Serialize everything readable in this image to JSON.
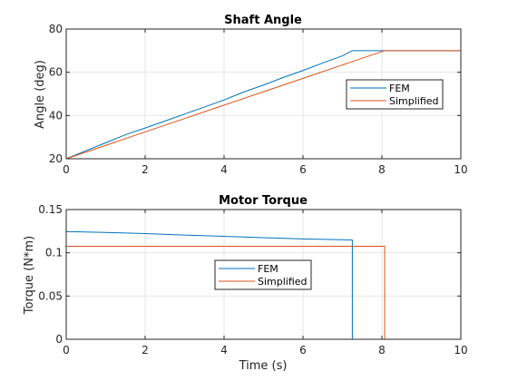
{
  "chart_data": [
    {
      "type": "line",
      "title": "Shaft Angle",
      "xlabel": "",
      "ylabel": "Angle (deg)",
      "xlim": [
        0,
        10
      ],
      "ylim": [
        20,
        80
      ],
      "xticks": [
        0,
        2,
        4,
        6,
        8,
        10
      ],
      "yticks": [
        20,
        40,
        60,
        80
      ],
      "xtick_labels": [
        "0",
        "2",
        "4",
        "6",
        "8",
        "10"
      ],
      "ytick_labels": [
        "20",
        "40",
        "60",
        "80"
      ],
      "grid": true,
      "legend_placement": "center-right",
      "series": [
        {
          "name": "FEM",
          "color": "#0072BD",
          "points": [
            [
              0,
              20
            ],
            [
              0.5,
              23.7
            ],
            [
              1,
              27.4
            ],
            [
              1.5,
              31.1
            ],
            [
              2,
              34.2
            ],
            [
              2.5,
              37.4
            ],
            [
              3,
              40.7
            ],
            [
              3.5,
              43.9
            ],
            [
              4,
              47.2
            ],
            [
              4.5,
              50.9
            ],
            [
              5,
              54.1
            ],
            [
              5.5,
              57.6
            ],
            [
              6,
              60.8
            ],
            [
              6.5,
              64.3
            ],
            [
              7,
              67.6
            ],
            [
              7.25,
              70
            ],
            [
              8.1,
              70
            ],
            [
              10,
              70
            ]
          ]
        },
        {
          "name": "Simplified",
          "color": "#D95319",
          "points": [
            [
              0,
              20
            ],
            [
              1,
              26.2
            ],
            [
              2,
              32.4
            ],
            [
              3,
              38.6
            ],
            [
              4,
              44.8
            ],
            [
              5,
              51
            ],
            [
              6,
              57.2
            ],
            [
              7,
              63.4
            ],
            [
              8.07,
              70
            ],
            [
              10,
              70
            ]
          ]
        }
      ]
    },
    {
      "type": "line",
      "title": "Motor Torque",
      "xlabel": "Time (s)",
      "ylabel": "Torque (N*m)",
      "xlim": [
        0,
        10
      ],
      "ylim": [
        0,
        0.15
      ],
      "xticks": [
        0,
        2,
        4,
        6,
        8,
        10
      ],
      "yticks": [
        0,
        0.05,
        0.1,
        0.15
      ],
      "xtick_labels": [
        "0",
        "2",
        "4",
        "6",
        "8",
        "10"
      ],
      "ytick_labels": [
        "0",
        "0.05",
        "0.1",
        "0.15"
      ],
      "grid": true,
      "legend_placement": "center",
      "series": [
        {
          "name": "FEM",
          "color": "#0072BD",
          "points": [
            [
              0,
              0
            ],
            [
              0,
              0.1245
            ],
            [
              1,
              0.1235
            ],
            [
              2,
              0.1222
            ],
            [
              3,
              0.1205
            ],
            [
              4,
              0.119
            ],
            [
              5,
              0.1175
            ],
            [
              6,
              0.116
            ],
            [
              7.25,
              0.1148
            ],
            [
              7.25,
              0
            ],
            [
              10,
              0
            ]
          ]
        },
        {
          "name": "Simplified",
          "color": "#D95319",
          "points": [
            [
              0,
              0
            ],
            [
              0,
              0.1075
            ],
            [
              8.07,
              0.1075
            ],
            [
              8.07,
              0
            ],
            [
              10,
              0
            ]
          ]
        }
      ]
    }
  ]
}
